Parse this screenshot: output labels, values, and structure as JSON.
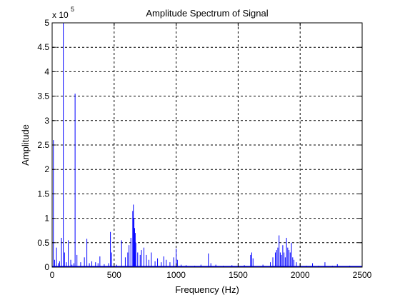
{
  "chart_data": {
    "type": "line",
    "title": "Amplitude Spectrum of Signal",
    "xlabel": "Frequency (Hz)",
    "ylabel": "Amplitude",
    "xlim": [
      0,
      2500
    ],
    "ylim": [
      0,
      500000
    ],
    "xticks": [
      0,
      500,
      1000,
      1500,
      2000,
      2500
    ],
    "xtick_labels": [
      "0",
      "500",
      "1000",
      "1500",
      "2000",
      "2500"
    ],
    "yticks": [
      0,
      50000,
      100000,
      150000,
      200000,
      250000,
      300000,
      350000,
      400000,
      450000,
      500000
    ],
    "ytick_labels": [
      "0",
      "0.5",
      "1",
      "1.5",
      "2",
      "2.5",
      "3",
      "3.5",
      "4",
      "4.5",
      "5"
    ],
    "exponent_label": "x 10",
    "exponent_power": "5",
    "grid": true,
    "line_color": "#0000ff",
    "series": [
      {
        "peaks": [
          [
            10,
            260000
          ],
          [
            20,
            15000
          ],
          [
            35,
            40000
          ],
          [
            50,
            8000
          ],
          [
            60,
            12000
          ],
          [
            75,
            60000
          ],
          [
            90,
            500000
          ],
          [
            100,
            30000
          ],
          [
            115,
            10000
          ],
          [
            130,
            55000
          ],
          [
            150,
            15000
          ],
          [
            160,
            5000
          ],
          [
            175,
            8000
          ],
          [
            185,
            355000
          ],
          [
            200,
            25000
          ],
          [
            230,
            10000
          ],
          [
            260,
            20000
          ],
          [
            280,
            58000
          ],
          [
            300,
            8000
          ],
          [
            320,
            12000
          ],
          [
            350,
            10000
          ],
          [
            370,
            8000
          ],
          [
            385,
            22000
          ],
          [
            420,
            6000
          ],
          [
            455,
            8000
          ],
          [
            470,
            72000
          ],
          [
            480,
            30000
          ],
          [
            520,
            5000
          ],
          [
            560,
            55000
          ],
          [
            590,
            20000
          ],
          [
            610,
            30000
          ],
          [
            620,
            45000
          ],
          [
            635,
            60000
          ],
          [
            650,
            115000
          ],
          [
            655,
            128000
          ],
          [
            660,
            100000
          ],
          [
            665,
            80000
          ],
          [
            670,
            70000
          ],
          [
            675,
            50000
          ],
          [
            690,
            30000
          ],
          [
            710,
            25000
          ],
          [
            720,
            35000
          ],
          [
            740,
            40000
          ],
          [
            760,
            25000
          ],
          [
            780,
            15000
          ],
          [
            800,
            30000
          ],
          [
            830,
            12000
          ],
          [
            850,
            18000
          ],
          [
            880,
            10000
          ],
          [
            900,
            22000
          ],
          [
            920,
            15000
          ],
          [
            950,
            10000
          ],
          [
            980,
            20000
          ],
          [
            1000,
            38000
          ],
          [
            1010,
            15000
          ],
          [
            1040,
            5000
          ],
          [
            1080,
            4000
          ],
          [
            1150,
            3000
          ],
          [
            1200,
            5000
          ],
          [
            1260,
            28000
          ],
          [
            1280,
            8000
          ],
          [
            1320,
            5000
          ],
          [
            1380,
            3000
          ],
          [
            1450,
            4000
          ],
          [
            1500,
            5000
          ],
          [
            1550,
            4000
          ],
          [
            1600,
            25000
          ],
          [
            1610,
            30000
          ],
          [
            1620,
            18000
          ],
          [
            1700,
            5000
          ],
          [
            1760,
            10000
          ],
          [
            1780,
            20000
          ],
          [
            1800,
            30000
          ],
          [
            1810,
            35000
          ],
          [
            1820,
            40000
          ],
          [
            1830,
            65000
          ],
          [
            1840,
            30000
          ],
          [
            1850,
            25000
          ],
          [
            1860,
            45000
          ],
          [
            1870,
            30000
          ],
          [
            1880,
            20000
          ],
          [
            1890,
            60000
          ],
          [
            1900,
            40000
          ],
          [
            1910,
            35000
          ],
          [
            1920,
            30000
          ],
          [
            1930,
            50000
          ],
          [
            1940,
            20000
          ],
          [
            1950,
            15000
          ],
          [
            1970,
            10000
          ],
          [
            2000,
            5000
          ],
          [
            2050,
            3000
          ],
          [
            2100,
            8000
          ],
          [
            2150,
            3000
          ],
          [
            2200,
            10000
          ],
          [
            2260,
            3000
          ],
          [
            2300,
            6000
          ],
          [
            2350,
            2000
          ],
          [
            2400,
            3000
          ],
          [
            2450,
            2000
          ]
        ]
      }
    ]
  }
}
